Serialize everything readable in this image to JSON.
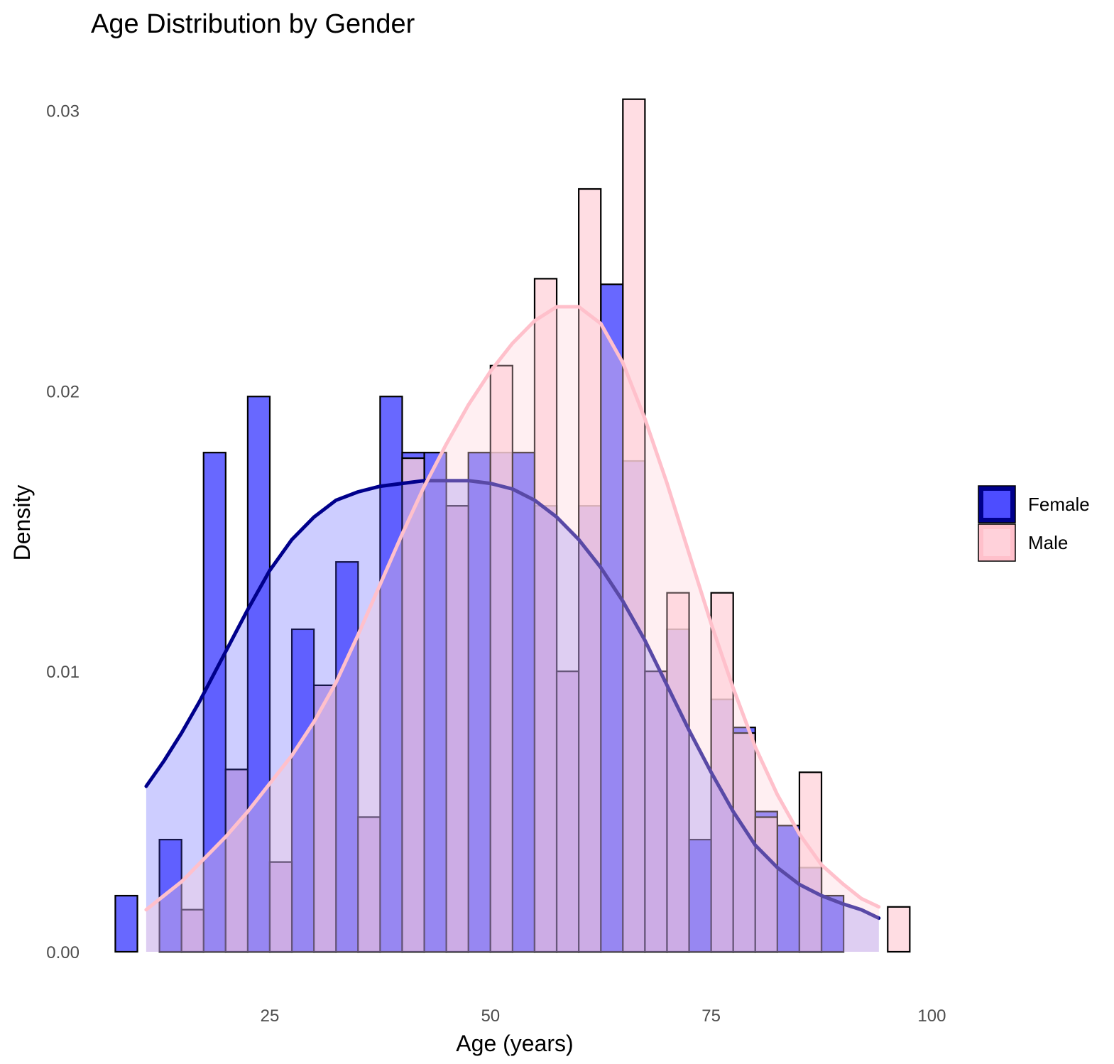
{
  "chart_data": {
    "type": "bar",
    "title": "Age Distribution by Gender",
    "xlabel": "Age (years)",
    "ylabel": "Density",
    "xlim": [
      6.5,
      99
    ],
    "ylim": [
      0,
      0.031
    ],
    "x_ticks": [
      25,
      50,
      75,
      100
    ],
    "y_ticks": [
      0.0,
      0.01,
      0.02,
      0.03
    ],
    "y_tick_labels": [
      "0.00",
      "0.01",
      "0.02",
      "0.03"
    ],
    "bin_width": 2.5,
    "grid": false,
    "legend_position": "right",
    "series": [
      {
        "name": "Female",
        "fill": "#4d4dff",
        "line_color": "#00008b",
        "bins": [
          {
            "x": 8.75,
            "y": 0.002
          },
          {
            "x": 13.75,
            "y": 0.004
          },
          {
            "x": 16.25,
            "y": 0.0015
          },
          {
            "x": 18.75,
            "y": 0.0178
          },
          {
            "x": 21.25,
            "y": 0.0065
          },
          {
            "x": 23.75,
            "y": 0.0198
          },
          {
            "x": 26.25,
            "y": 0.0032
          },
          {
            "x": 28.75,
            "y": 0.0115
          },
          {
            "x": 31.25,
            "y": 0.0095
          },
          {
            "x": 33.75,
            "y": 0.0139
          },
          {
            "x": 36.25,
            "y": 0.0048
          },
          {
            "x": 38.75,
            "y": 0.0198
          },
          {
            "x": 41.25,
            "y": 0.0178
          },
          {
            "x": 43.75,
            "y": 0.0178
          },
          {
            "x": 46.25,
            "y": 0.0159
          },
          {
            "x": 48.75,
            "y": 0.0178
          },
          {
            "x": 51.25,
            "y": 0.0178
          },
          {
            "x": 53.75,
            "y": 0.0178
          },
          {
            "x": 56.25,
            "y": 0.0159
          },
          {
            "x": 58.75,
            "y": 0.01
          },
          {
            "x": 61.25,
            "y": 0.0159
          },
          {
            "x": 63.75,
            "y": 0.0238
          },
          {
            "x": 66.25,
            "y": 0.0175
          },
          {
            "x": 68.75,
            "y": 0.01
          },
          {
            "x": 71.25,
            "y": 0.0115
          },
          {
            "x": 73.75,
            "y": 0.004
          },
          {
            "x": 76.25,
            "y": 0.009
          },
          {
            "x": 78.75,
            "y": 0.008
          },
          {
            "x": 81.25,
            "y": 0.005
          },
          {
            "x": 83.75,
            "y": 0.0045
          },
          {
            "x": 86.25,
            "y": 0.003
          },
          {
            "x": 88.75,
            "y": 0.002
          }
        ],
        "density": {
          "x": [
            11,
            13,
            15,
            17,
            20,
            22.5,
            25,
            27.5,
            30,
            32.5,
            35,
            37.5,
            40,
            42.5,
            45,
            47.5,
            50,
            52.5,
            55,
            57.5,
            60,
            62.5,
            65,
            67.5,
            70,
            72.5,
            75,
            77.5,
            80,
            82.5,
            85,
            87.5,
            90,
            92,
            94
          ],
          "y": [
            0.0059,
            0.0068,
            0.0078,
            0.0089,
            0.0107,
            0.0122,
            0.0136,
            0.0147,
            0.0155,
            0.0161,
            0.0164,
            0.0166,
            0.0167,
            0.0168,
            0.0168,
            0.0168,
            0.0167,
            0.0165,
            0.0161,
            0.0155,
            0.0147,
            0.0137,
            0.0125,
            0.0111,
            0.0095,
            0.0079,
            0.0064,
            0.005,
            0.0038,
            0.003,
            0.0024,
            0.002,
            0.0017,
            0.0015,
            0.0012
          ]
        }
      },
      {
        "name": "Male",
        "fill": "#ffd1da",
        "line_color": "#ffc0cb",
        "bins": [
          {
            "x": 16.25,
            "y": 0.0015
          },
          {
            "x": 21.25,
            "y": 0.0065
          },
          {
            "x": 26.25,
            "y": 0.0032
          },
          {
            "x": 31.25,
            "y": 0.0095
          },
          {
            "x": 36.25,
            "y": 0.0048
          },
          {
            "x": 41.25,
            "y": 0.0176
          },
          {
            "x": 46.25,
            "y": 0.0159
          },
          {
            "x": 51.25,
            "y": 0.0209
          },
          {
            "x": 56.25,
            "y": 0.024
          },
          {
            "x": 58.75,
            "y": 0.01
          },
          {
            "x": 61.25,
            "y": 0.0272
          },
          {
            "x": 66.25,
            "y": 0.0304
          },
          {
            "x": 68.75,
            "y": 0.01
          },
          {
            "x": 71.25,
            "y": 0.0128
          },
          {
            "x": 76.25,
            "y": 0.0128
          },
          {
            "x": 78.75,
            "y": 0.0078
          },
          {
            "x": 81.25,
            "y": 0.0048
          },
          {
            "x": 86.25,
            "y": 0.0064
          },
          {
            "x": 96.25,
            "y": 0.0016
          }
        ],
        "density": {
          "x": [
            11,
            13,
            15,
            17.5,
            20,
            22.5,
            25,
            27.5,
            30,
            32.5,
            35,
            37.5,
            40,
            42.5,
            45,
            47.5,
            50,
            52.5,
            55,
            57.5,
            60,
            62.5,
            65,
            67.5,
            70,
            72.5,
            75,
            77.5,
            80,
            82.5,
            85,
            87.5,
            90,
            92,
            94
          ],
          "y": [
            0.0015,
            0.002,
            0.0025,
            0.0033,
            0.0041,
            0.005,
            0.006,
            0.007,
            0.0082,
            0.0096,
            0.0113,
            0.0131,
            0.0149,
            0.0166,
            0.0181,
            0.0195,
            0.0207,
            0.0217,
            0.0225,
            0.023,
            0.023,
            0.0224,
            0.021,
            0.019,
            0.0167,
            0.0142,
            0.0117,
            0.0094,
            0.0073,
            0.0056,
            0.0042,
            0.0031,
            0.0024,
            0.0019,
            0.0016
          ]
        }
      }
    ]
  }
}
